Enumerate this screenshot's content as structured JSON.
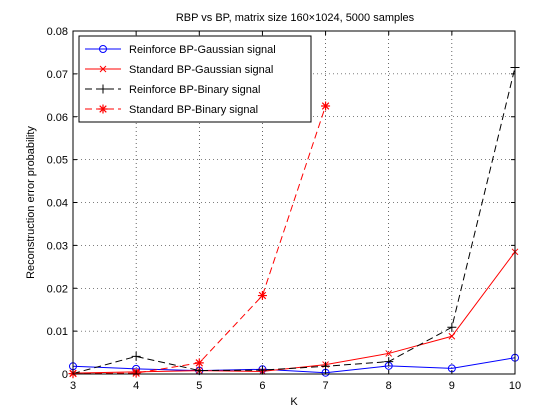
{
  "chart_data": {
    "type": "line",
    "title": "RBP vs BP, matrix size 160×1024, 5000 samples",
    "xlabel": "K",
    "ylabel": "Reconstruction error probability",
    "xlim": [
      3,
      10
    ],
    "ylim": [
      0,
      0.08
    ],
    "xticks": [
      3,
      4,
      5,
      6,
      7,
      8,
      9,
      10
    ],
    "yticks": [
      0,
      0.01,
      0.02,
      0.03,
      0.04,
      0.05,
      0.06,
      0.07,
      0.08
    ],
    "ytick_labels": [
      "0",
      "0.01",
      "0.02",
      "0.03",
      "0.04",
      "0.05",
      "0.06",
      "0.07",
      "0.08"
    ],
    "grid": true,
    "legend_position": "top-left",
    "series": [
      {
        "name": "Reinforce BP-Gaussian signal",
        "color": "#0000ff",
        "line": "solid",
        "marker": "circle",
        "x": [
          3,
          4,
          5,
          6,
          7,
          8,
          9,
          10
        ],
        "y": [
          0.0018,
          0.0012,
          0.0008,
          0.0011,
          0.0003,
          0.0019,
          0.0013,
          0.0038
        ]
      },
      {
        "name": "Standard BP-Gaussian signal",
        "color": "#ff0000",
        "line": "solid",
        "marker": "x",
        "x": [
          3,
          4,
          5,
          6,
          7,
          8,
          9,
          10
        ],
        "y": [
          0.0002,
          0.0005,
          0.0008,
          0.0006,
          0.0022,
          0.0048,
          0.0088,
          0.0285
        ]
      },
      {
        "name": "Reinforce BP-Binary signal",
        "color": "#000000",
        "line": "dashed",
        "marker": "plus",
        "x": [
          3,
          4,
          5,
          6,
          7,
          8,
          9,
          10
        ],
        "y": [
          0.0001,
          0.0041,
          0.0008,
          0.0009,
          0.0018,
          0.0029,
          0.0109,
          0.0715
        ]
      },
      {
        "name": "Standard BP-Binary signal",
        "color": "#ff0000",
        "line": "dashed",
        "marker": "star",
        "x": [
          3,
          4,
          5,
          6,
          7
        ],
        "y": [
          0.0001,
          0.0002,
          0.0026,
          0.0183,
          0.0625
        ]
      }
    ]
  }
}
